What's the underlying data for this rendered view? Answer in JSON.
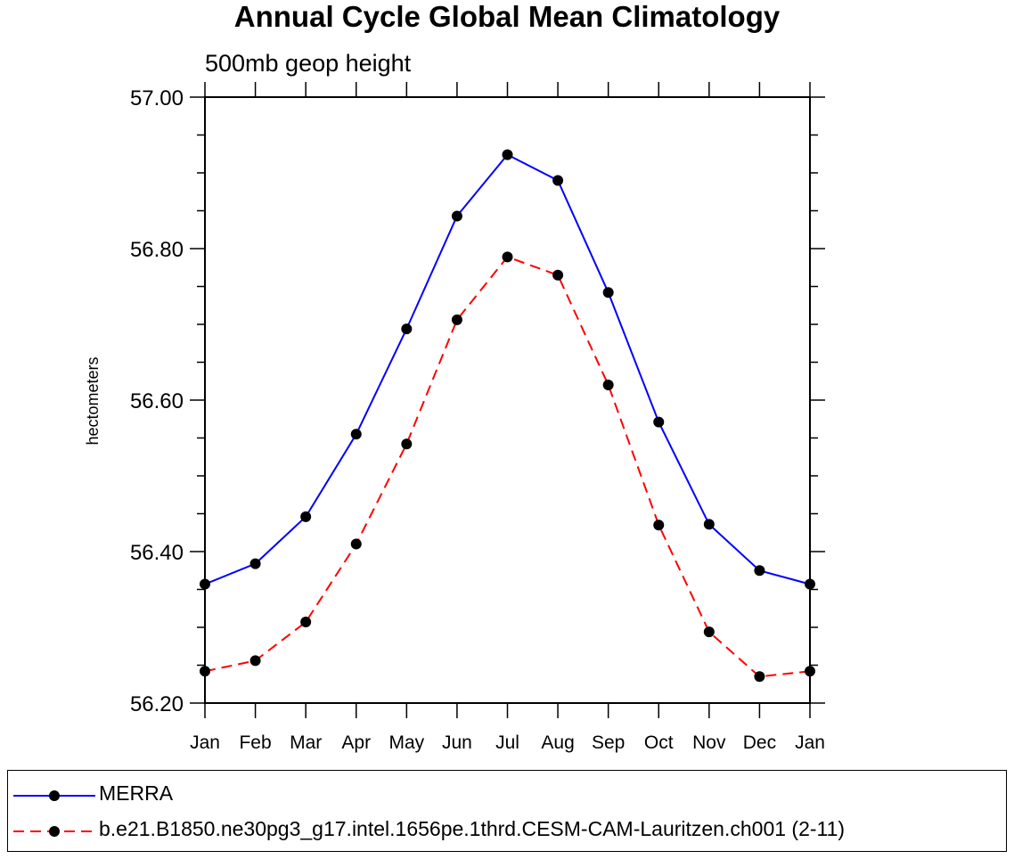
{
  "chart_data": {
    "type": "line",
    "title": "Annual Cycle Global Mean Climatology",
    "subtitle": "500mb geop height",
    "xlabel": "",
    "ylabel": "hectometers",
    "categories": [
      "Jan",
      "Feb",
      "Mar",
      "Apr",
      "May",
      "Jun",
      "Jul",
      "Aug",
      "Sep",
      "Oct",
      "Nov",
      "Dec",
      "Jan"
    ],
    "ylim": [
      56.2,
      57.0
    ],
    "yticks": [
      "56.20",
      "56.40",
      "56.60",
      "56.80",
      "57.00"
    ],
    "grid": false,
    "legend_position": "bottom",
    "series": [
      {
        "name": "MERRA",
        "color": "#0000ff",
        "dash": "solid",
        "marker": "filled-circle",
        "values": [
          56.357,
          56.384,
          56.446,
          56.555,
          56.694,
          56.843,
          56.924,
          56.89,
          56.742,
          56.571,
          56.436,
          56.375,
          56.357
        ]
      },
      {
        "name": "b.e21.B1850.ne30pg3_g17.intel.1656pe.1thrd.CESM-CAM-Lauritzen.ch001 (2-11)",
        "color": "#ff0000",
        "dash": "dashed",
        "marker": "filled-circle",
        "values": [
          56.242,
          56.256,
          56.307,
          56.41,
          56.542,
          56.706,
          56.789,
          56.765,
          56.62,
          56.435,
          56.294,
          56.235,
          56.242
        ]
      }
    ]
  }
}
